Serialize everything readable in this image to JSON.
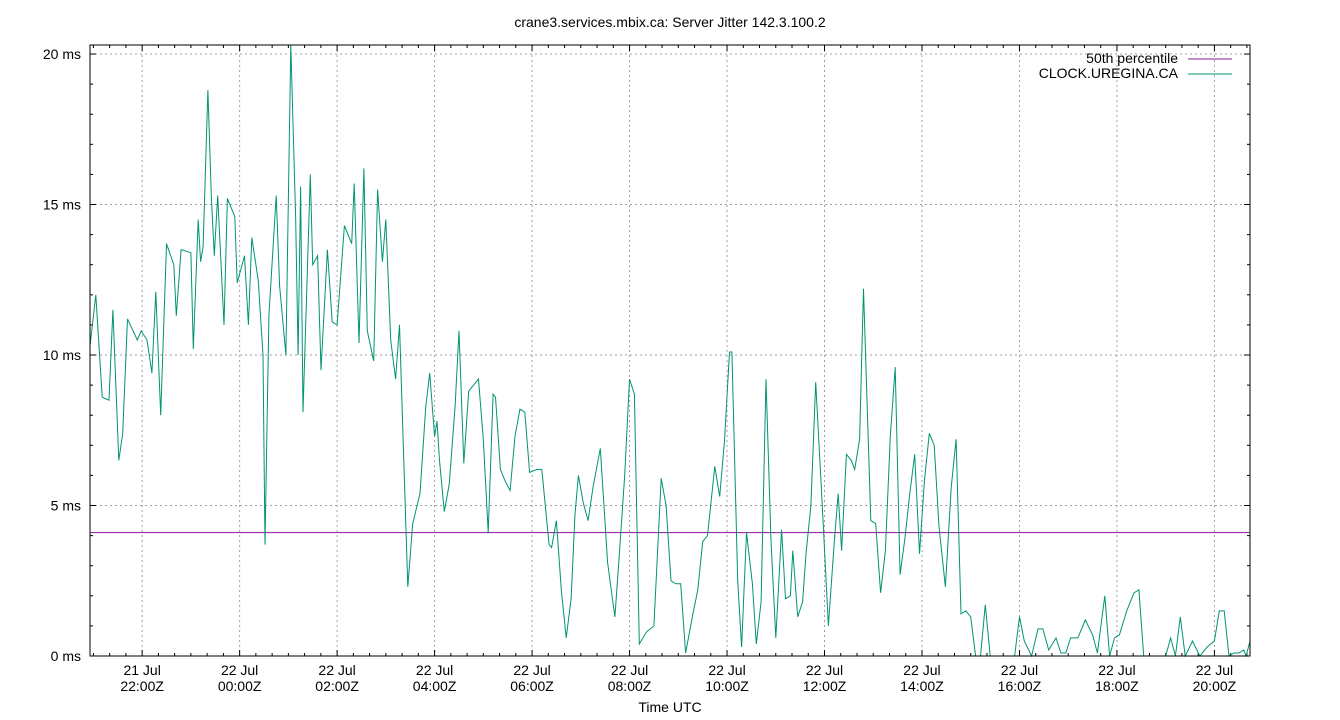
{
  "chart_data": {
    "type": "line",
    "title": "crane3.services.mbix.ca: Server Jitter 142.3.100.2",
    "xlabel": "Time UTC",
    "ylabel": "",
    "ylim": [
      0,
      20.3
    ],
    "y_unit": "ms",
    "y_ticks": [
      {
        "value": 0,
        "label": "0 ms"
      },
      {
        "value": 5,
        "label": "5 ms"
      },
      {
        "value": 10,
        "label": "10 ms"
      },
      {
        "value": 15,
        "label": "15 ms"
      },
      {
        "value": 20,
        "label": "20 ms"
      }
    ],
    "x_range_hours": [
      -3.07,
      20.73
    ],
    "x_ticks": [
      {
        "hour": -2,
        "date": "21 Jul",
        "time": "22:00Z"
      },
      {
        "hour": 0,
        "date": "22 Jul",
        "time": "00:00Z"
      },
      {
        "hour": 2,
        "date": "22 Jul",
        "time": "02:00Z"
      },
      {
        "hour": 4,
        "date": "22 Jul",
        "time": "04:00Z"
      },
      {
        "hour": 6,
        "date": "22 Jul",
        "time": "06:00Z"
      },
      {
        "hour": 8,
        "date": "22 Jul",
        "time": "08:00Z"
      },
      {
        "hour": 10,
        "date": "22 Jul",
        "time": "10:00Z"
      },
      {
        "hour": 12,
        "date": "22 Jul",
        "time": "12:00Z"
      },
      {
        "hour": 14,
        "date": "22 Jul",
        "time": "14:00Z"
      },
      {
        "hour": 16,
        "date": "22 Jul",
        "time": "16:00Z"
      },
      {
        "hour": 18,
        "date": "22 Jul",
        "time": "18:00Z"
      },
      {
        "hour": 20,
        "date": "22 Jul",
        "time": "20:00Z"
      }
    ],
    "grid": true,
    "legend_position": "top-right",
    "series": [
      {
        "name": "50th percentile",
        "color": "#8b1a9e",
        "kind": "hline",
        "value": 4.1
      },
      {
        "name": "CLOCK.UREGINA.CA",
        "color": "#009473",
        "kind": "line",
        "points": [
          [
            -3.07,
            10.3
          ],
          [
            -2.95,
            12.0
          ],
          [
            -2.82,
            8.6
          ],
          [
            -2.68,
            8.5
          ],
          [
            -2.6,
            11.5
          ],
          [
            -2.48,
            6.5
          ],
          [
            -2.4,
            7.4
          ],
          [
            -2.3,
            11.2
          ],
          [
            -2.1,
            10.5
          ],
          [
            -2.02,
            10.8
          ],
          [
            -1.9,
            10.5
          ],
          [
            -1.8,
            9.4
          ],
          [
            -1.72,
            12.1
          ],
          [
            -1.62,
            8.0
          ],
          [
            -1.5,
            13.7
          ],
          [
            -1.35,
            13.0
          ],
          [
            -1.3,
            11.3
          ],
          [
            -1.2,
            13.5
          ],
          [
            -1.0,
            13.4
          ],
          [
            -0.95,
            10.2
          ],
          [
            -0.85,
            14.5
          ],
          [
            -0.8,
            13.1
          ],
          [
            -0.75,
            13.6
          ],
          [
            -0.65,
            18.8
          ],
          [
            -0.58,
            15.2
          ],
          [
            -0.52,
            13.3
          ],
          [
            -0.45,
            15.3
          ],
          [
            -0.32,
            11.0
          ],
          [
            -0.25,
            15.2
          ],
          [
            -0.1,
            14.6
          ],
          [
            -0.05,
            12.4
          ],
          [
            0.05,
            13.0
          ],
          [
            0.1,
            13.3
          ],
          [
            0.18,
            11.0
          ],
          [
            0.25,
            13.9
          ],
          [
            0.38,
            12.5
          ],
          [
            0.48,
            10.0
          ],
          [
            0.52,
            3.7
          ],
          [
            0.6,
            11.3
          ],
          [
            0.75,
            15.3
          ],
          [
            0.82,
            12.3
          ],
          [
            0.95,
            10.0
          ],
          [
            1.05,
            20.3
          ],
          [
            1.15,
            14.5
          ],
          [
            1.2,
            10.0
          ],
          [
            1.25,
            15.6
          ],
          [
            1.3,
            8.1
          ],
          [
            1.45,
            16.0
          ],
          [
            1.5,
            13.0
          ],
          [
            1.6,
            13.3
          ],
          [
            1.67,
            9.5
          ],
          [
            1.8,
            13.5
          ],
          [
            1.9,
            11.1
          ],
          [
            2.0,
            11.0
          ],
          [
            2.15,
            14.3
          ],
          [
            2.3,
            13.7
          ],
          [
            2.35,
            15.7
          ],
          [
            2.45,
            10.4
          ],
          [
            2.55,
            16.2
          ],
          [
            2.62,
            10.8
          ],
          [
            2.75,
            9.8
          ],
          [
            2.83,
            15.5
          ],
          [
            2.93,
            13.1
          ],
          [
            3.0,
            14.5
          ],
          [
            3.1,
            10.5
          ],
          [
            3.2,
            9.2
          ],
          [
            3.28,
            11.0
          ],
          [
            3.45,
            2.3
          ],
          [
            3.55,
            4.4
          ],
          [
            3.7,
            5.4
          ],
          [
            3.82,
            8.3
          ],
          [
            3.9,
            9.4
          ],
          [
            4.0,
            7.3
          ],
          [
            4.05,
            7.8
          ],
          [
            4.1,
            6.5
          ],
          [
            4.2,
            4.8
          ],
          [
            4.3,
            5.7
          ],
          [
            4.42,
            8.3
          ],
          [
            4.5,
            10.8
          ],
          [
            4.6,
            6.4
          ],
          [
            4.7,
            8.8
          ],
          [
            4.9,
            9.2
          ],
          [
            5.0,
            7.2
          ],
          [
            5.1,
            4.1
          ],
          [
            5.2,
            8.7
          ],
          [
            5.25,
            8.6
          ],
          [
            5.35,
            6.2
          ],
          [
            5.45,
            5.8
          ],
          [
            5.55,
            5.5
          ],
          [
            5.65,
            7.3
          ],
          [
            5.75,
            8.2
          ],
          [
            5.85,
            8.1
          ],
          [
            5.95,
            6.1
          ],
          [
            6.1,
            6.2
          ],
          [
            6.2,
            6.2
          ],
          [
            6.35,
            3.7
          ],
          [
            6.4,
            3.6
          ],
          [
            6.5,
            4.5
          ],
          [
            6.6,
            2.2
          ],
          [
            6.7,
            0.6
          ],
          [
            6.8,
            1.9
          ],
          [
            6.88,
            4.7
          ],
          [
            6.95,
            6.0
          ],
          [
            7.05,
            5.1
          ],
          [
            7.15,
            4.5
          ],
          [
            7.25,
            5.6
          ],
          [
            7.4,
            6.9
          ],
          [
            7.55,
            3.1
          ],
          [
            7.7,
            1.3
          ],
          [
            7.8,
            3.6
          ],
          [
            7.9,
            6.0
          ],
          [
            8.0,
            9.2
          ],
          [
            8.1,
            8.7
          ],
          [
            8.2,
            0.4
          ],
          [
            8.35,
            0.8
          ],
          [
            8.5,
            1.0
          ],
          [
            8.65,
            5.9
          ],
          [
            8.75,
            5.0
          ],
          [
            8.85,
            2.5
          ],
          [
            8.95,
            2.4
          ],
          [
            9.05,
            2.4
          ],
          [
            9.15,
            0.1
          ],
          [
            9.3,
            1.4
          ],
          [
            9.4,
            2.2
          ],
          [
            9.5,
            3.8
          ],
          [
            9.6,
            4.0
          ],
          [
            9.75,
            6.3
          ],
          [
            9.85,
            5.3
          ],
          [
            9.95,
            7.2
          ],
          [
            10.05,
            10.1
          ],
          [
            10.1,
            10.1
          ],
          [
            10.22,
            2.5
          ],
          [
            10.3,
            0.3
          ],
          [
            10.4,
            4.1
          ],
          [
            10.52,
            2.4
          ],
          [
            10.6,
            0.4
          ],
          [
            10.7,
            1.8
          ],
          [
            10.8,
            9.2
          ],
          [
            10.9,
            3.9
          ],
          [
            11.0,
            0.6
          ],
          [
            11.12,
            4.2
          ],
          [
            11.2,
            1.9
          ],
          [
            11.3,
            2.0
          ],
          [
            11.35,
            3.5
          ],
          [
            11.45,
            1.3
          ],
          [
            11.55,
            1.8
          ],
          [
            11.62,
            3.4
          ],
          [
            11.72,
            5.0
          ],
          [
            11.82,
            9.1
          ],
          [
            11.95,
            5.1
          ],
          [
            12.08,
            1.0
          ],
          [
            12.2,
            3.8
          ],
          [
            12.28,
            5.4
          ],
          [
            12.35,
            3.5
          ],
          [
            12.45,
            6.7
          ],
          [
            12.55,
            6.5
          ],
          [
            12.62,
            6.2
          ],
          [
            12.72,
            7.2
          ],
          [
            12.8,
            12.2
          ],
          [
            12.95,
            4.5
          ],
          [
            13.05,
            4.4
          ],
          [
            13.15,
            2.1
          ],
          [
            13.25,
            3.5
          ],
          [
            13.35,
            7.3
          ],
          [
            13.45,
            9.6
          ],
          [
            13.55,
            2.7
          ],
          [
            13.65,
            3.9
          ],
          [
            13.75,
            5.4
          ],
          [
            13.85,
            6.7
          ],
          [
            13.95,
            3.4
          ],
          [
            14.05,
            5.8
          ],
          [
            14.15,
            7.4
          ],
          [
            14.25,
            7.0
          ],
          [
            14.35,
            4.3
          ],
          [
            14.48,
            2.3
          ],
          [
            14.6,
            5.6
          ],
          [
            14.7,
            7.2
          ],
          [
            14.8,
            1.4
          ],
          [
            14.9,
            1.5
          ],
          [
            15.0,
            1.3
          ],
          [
            15.1,
            0.0
          ],
          [
            15.2,
            0.0
          ],
          [
            15.3,
            1.7
          ],
          [
            15.4,
            0.0
          ],
          [
            15.5,
            0.0
          ],
          [
            15.7,
            0.0
          ],
          [
            15.9,
            0.0
          ],
          [
            16.0,
            1.3
          ],
          [
            16.1,
            0.5
          ],
          [
            16.25,
            0.0
          ],
          [
            16.38,
            0.9
          ],
          [
            16.48,
            0.9
          ],
          [
            16.6,
            0.2
          ],
          [
            16.75,
            0.6
          ],
          [
            16.85,
            0.1
          ],
          [
            16.95,
            0.1
          ],
          [
            17.05,
            0.6
          ],
          [
            17.2,
            0.6
          ],
          [
            17.35,
            1.2
          ],
          [
            17.5,
            0.7
          ],
          [
            17.6,
            0.1
          ],
          [
            17.75,
            2.0
          ],
          [
            17.85,
            0.0
          ],
          [
            17.95,
            0.6
          ],
          [
            18.05,
            0.7
          ],
          [
            18.2,
            1.5
          ],
          [
            18.35,
            2.1
          ],
          [
            18.45,
            2.2
          ],
          [
            18.55,
            0.0
          ],
          [
            18.7,
            0.0
          ],
          [
            18.85,
            0.0
          ],
          [
            19.0,
            0.0
          ],
          [
            19.1,
            0.6
          ],
          [
            19.2,
            0.0
          ],
          [
            19.3,
            1.3
          ],
          [
            19.4,
            0.0
          ],
          [
            19.55,
            0.5
          ],
          [
            19.7,
            0.0
          ],
          [
            19.85,
            0.3
          ],
          [
            20.0,
            0.5
          ],
          [
            20.1,
            1.5
          ],
          [
            20.2,
            1.5
          ],
          [
            20.3,
            0.0
          ],
          [
            20.4,
            0.1
          ],
          [
            20.5,
            0.1
          ],
          [
            20.6,
            0.2
          ],
          [
            20.65,
            0.0
          ],
          [
            20.73,
            0.5
          ]
        ]
      }
    ]
  }
}
